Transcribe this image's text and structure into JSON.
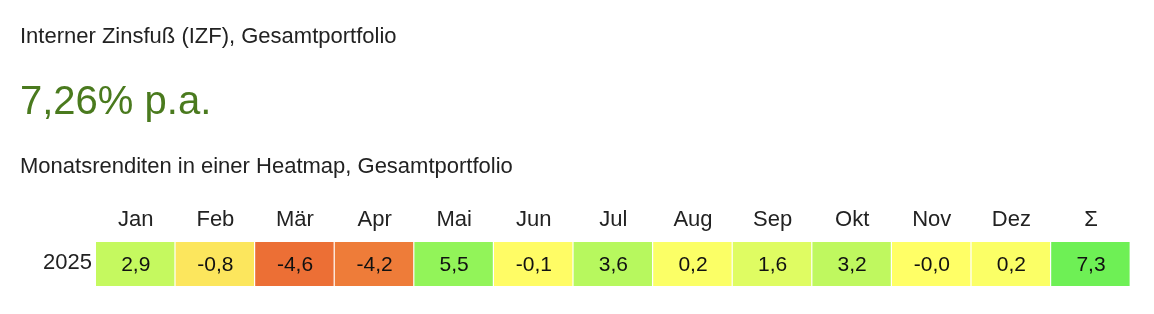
{
  "chart_data": {
    "type": "heatmap",
    "title": "Interner Zinsfuß (IZF), Gesamtportfolio",
    "annotations": [
      "7,26% p.a."
    ],
    "subtitle": "Monatsrenditen in einer Heatmap, Gesamtportfolio",
    "categories": [
      "Jan",
      "Feb",
      "Mär",
      "Apr",
      "Mai",
      "Jun",
      "Jul",
      "Aug",
      "Sep",
      "Okt",
      "Nov",
      "Dez",
      "Σ"
    ],
    "y_categories": [
      "2025"
    ],
    "cells": [
      [
        2.9,
        -0.8,
        -4.6,
        -4.2,
        5.5,
        -0.1,
        3.6,
        0.2,
        1.6,
        3.2,
        -0.0,
        0.2,
        7.3
      ]
    ],
    "cell_labels": [
      [
        "2,9",
        "-0,8",
        "-4,6",
        "-4,2",
        "5,5",
        "-0,1",
        "3,6",
        "0,2",
        "1,6",
        "3,2",
        "-0,0",
        "0,2",
        "7,3"
      ]
    ]
  }
}
